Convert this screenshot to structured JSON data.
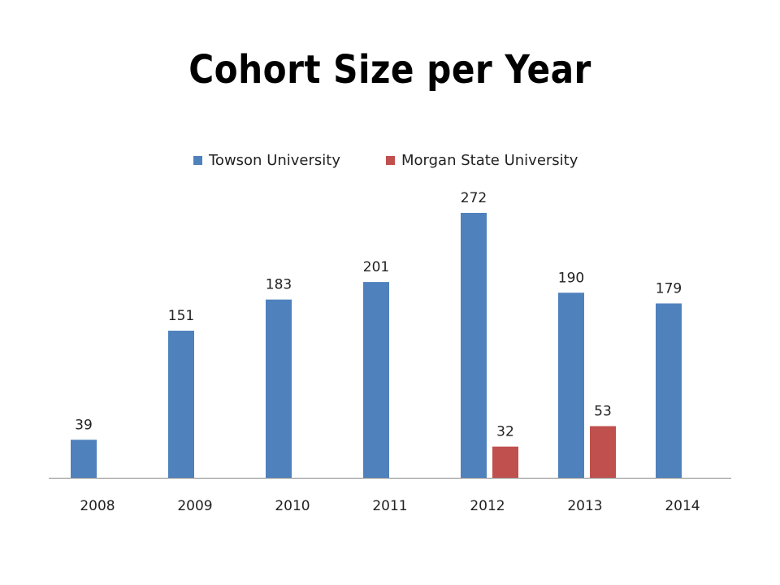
{
  "slide": {
    "title": "Cohort Size per Year"
  },
  "chart_data": {
    "type": "bar",
    "categories": [
      "2008",
      "2009",
      "2010",
      "2011",
      "2012",
      "2013",
      "2014"
    ],
    "series": [
      {
        "name": "Towson University",
        "color": "#4F81BD",
        "values": [
          39,
          151,
          183,
          201,
          272,
          190,
          179
        ]
      },
      {
        "name": "Morgan State University",
        "color": "#C0504D",
        "values": [
          null,
          null,
          null,
          null,
          32,
          53,
          null
        ]
      }
    ],
    "title": "Cohort Size per Year",
    "xlabel": "",
    "ylabel": "",
    "ylim": [
      0,
      272
    ],
    "grid": false,
    "legend_position": "top",
    "data_labels": true
  }
}
